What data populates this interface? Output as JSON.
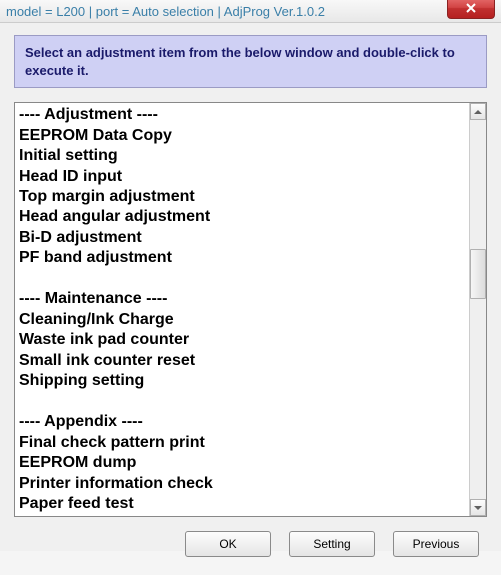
{
  "title_bar": {
    "text": "model = L200 | port = Auto selection | AdjProg Ver.1.0.2"
  },
  "instruction": "Select an adjustment item from the below window and double-click to execute it.",
  "list": {
    "items": [
      {
        "text": "---- Adjustment ----",
        "type": "header"
      },
      {
        "text": "EEPROM Data Copy",
        "type": "item"
      },
      {
        "text": "Initial setting",
        "type": "item"
      },
      {
        "text": "Head ID input",
        "type": "item"
      },
      {
        "text": "Top margin adjustment",
        "type": "item"
      },
      {
        "text": "Head angular adjustment",
        "type": "item"
      },
      {
        "text": "Bi-D adjustment",
        "type": "item"
      },
      {
        "text": "PF band adjustment",
        "type": "item"
      },
      {
        "text": "",
        "type": "blank"
      },
      {
        "text": "---- Maintenance ----",
        "type": "header"
      },
      {
        "text": "Cleaning/Ink Charge",
        "type": "item"
      },
      {
        "text": "Waste ink pad counter",
        "type": "item"
      },
      {
        "text": "Small ink counter reset",
        "type": "item"
      },
      {
        "text": "Shipping setting",
        "type": "item"
      },
      {
        "text": "",
        "type": "blank"
      },
      {
        "text": "---- Appendix ----",
        "type": "header"
      },
      {
        "text": "Final check pattern print",
        "type": "item"
      },
      {
        "text": "EEPROM dump",
        "type": "item"
      },
      {
        "text": "Printer information check",
        "type": "item"
      },
      {
        "text": "Paper feed test",
        "type": "item"
      }
    ]
  },
  "buttons": {
    "ok": "OK",
    "setting": "Setting",
    "previous": "Previous"
  },
  "colors": {
    "instruction_bg": "#cfd0f4",
    "instruction_text": "#1a1a6a",
    "title_text": "#3a7fa8",
    "close_bg": "#c13030"
  }
}
